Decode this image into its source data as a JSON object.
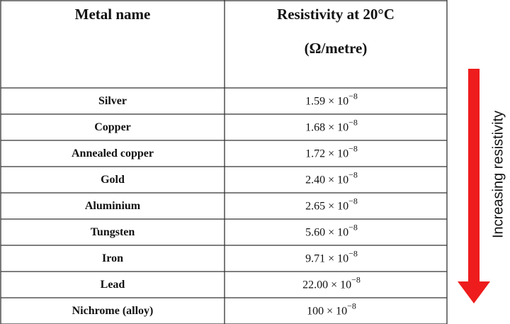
{
  "table": {
    "header": [
      "Metal name",
      "Resistivity at 20°C",
      "(Ω/metre)"
    ],
    "rows": [
      {
        "name": "Silver",
        "value": "1.59 × 10",
        "exponent": "−8"
      },
      {
        "name": "Copper",
        "value": "1.68 × 10",
        "exponent": "−8"
      },
      {
        "name": "Annealed copper",
        "value": "1.72 × 10",
        "exponent": "−8"
      },
      {
        "name": "Gold",
        "value": "2.40 × 10",
        "exponent": "−8"
      },
      {
        "name": "Aluminium",
        "value": "2.65 × 10",
        "exponent": "−8"
      },
      {
        "name": "Tungsten",
        "value": "5.60 × 10",
        "exponent": "−8"
      },
      {
        "name": "Iron",
        "value": "9.71 × 10",
        "exponent": "−8"
      },
      {
        "name": "Lead",
        "value": "22.00 × 10",
        "exponent": "−8"
      },
      {
        "name": "Nichrome (alloy)",
        "value": "100 × 10",
        "exponent": "−8"
      }
    ]
  },
  "arrow_label": "Increasing resistivity"
}
